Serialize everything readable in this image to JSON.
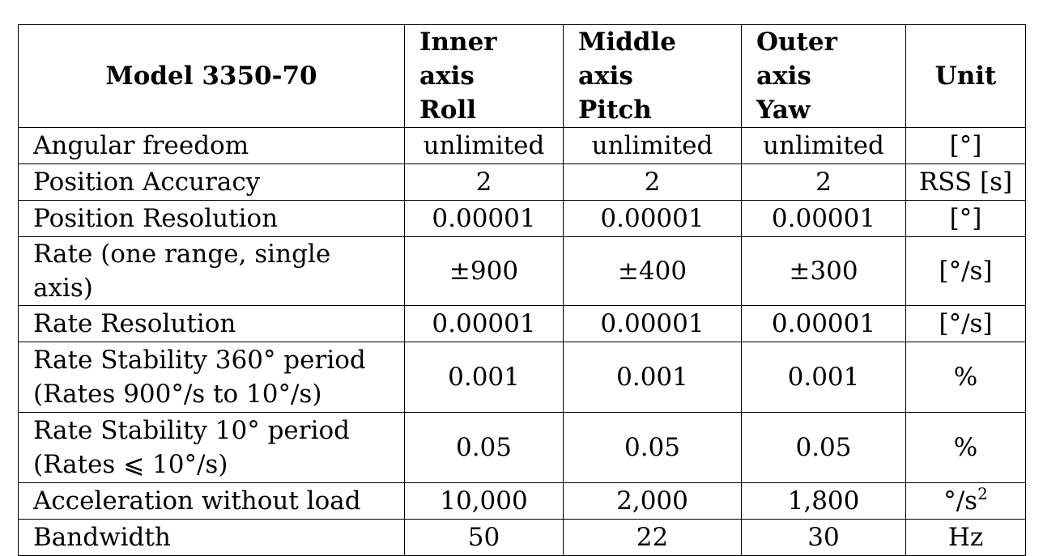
{
  "header": {
    "model": "Model 3350-70",
    "inner": [
      "Inner axis",
      "Roll"
    ],
    "middle": [
      "Middle axis",
      "Pitch"
    ],
    "outer": [
      "Outer axis",
      "Yaw"
    ],
    "unit": "Unit"
  },
  "rows": [
    {
      "param": [
        "Angular freedom"
      ],
      "inner": "unlimited",
      "middle": "unlimited",
      "outer": "unlimited",
      "unit": "[°]"
    },
    {
      "param": [
        "Position Accuracy"
      ],
      "inner": "2",
      "middle": "2",
      "outer": "2",
      "unit": "RSS [s]"
    },
    {
      "param": [
        "Position Resolution"
      ],
      "inner": "0.00001",
      "middle": "0.00001",
      "outer": "0.00001",
      "unit": "[°]"
    },
    {
      "param": [
        "Rate (one range, single axis)"
      ],
      "inner": "±900",
      "middle": "±400",
      "outer": "±300",
      "unit": "[°/s]"
    },
    {
      "param": [
        "Rate Resolution"
      ],
      "inner": "0.00001",
      "middle": "0.00001",
      "outer": "0.00001",
      "unit": "[°/s]"
    },
    {
      "param": [
        "Rate Stability 360° period",
        "(Rates 900°/s to 10°/s)"
      ],
      "inner": "0.001",
      "middle": "0.001",
      "outer": "0.001",
      "unit": "%"
    },
    {
      "param": [
        "Rate Stability 10° period",
        "(Rates ⩽ 10°/s)"
      ],
      "inner": "0.05",
      "middle": "0.05",
      "outer": "0.05",
      "unit": "%"
    },
    {
      "param": [
        "Acceleration without load"
      ],
      "inner": "10,000",
      "middle": "2,000",
      "outer": "1,800",
      "unit": "°/s",
      "unit_sup": "2"
    },
    {
      "param": [
        "Bandwidth"
      ],
      "inner": "50",
      "middle": "22",
      "outer": "30",
      "unit": "Hz"
    }
  ]
}
